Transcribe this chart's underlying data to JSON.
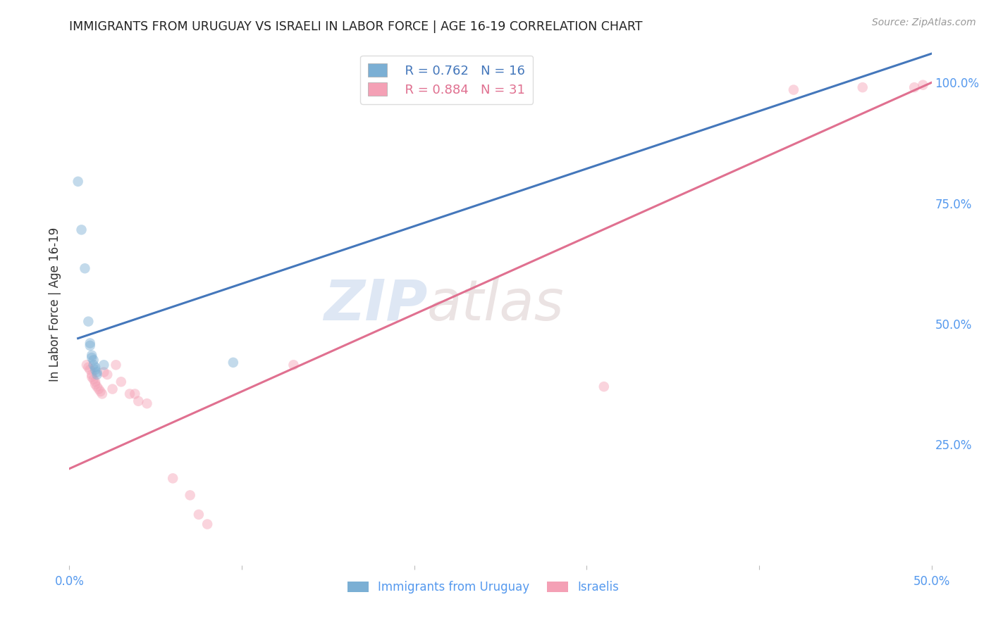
{
  "title": "IMMIGRANTS FROM URUGUAY VS ISRAELI IN LABOR FORCE | AGE 16-19 CORRELATION CHART",
  "source": "Source: ZipAtlas.com",
  "ylabel": "In Labor Force | Age 16-19",
  "xlim": [
    0.0,
    0.5
  ],
  "ylim": [
    0.0,
    1.08
  ],
  "ytick_labels_right": [
    "25.0%",
    "50.0%",
    "75.0%",
    "100.0%"
  ],
  "ytick_positions_right": [
    0.25,
    0.5,
    0.75,
    1.0
  ],
  "watermark_zip": "ZIP",
  "watermark_atlas": "atlas",
  "blue_scatter": [
    [
      0.005,
      0.795
    ],
    [
      0.007,
      0.695
    ],
    [
      0.009,
      0.615
    ],
    [
      0.011,
      0.505
    ],
    [
      0.012,
      0.46
    ],
    [
      0.012,
      0.455
    ],
    [
      0.013,
      0.435
    ],
    [
      0.013,
      0.43
    ],
    [
      0.014,
      0.425
    ],
    [
      0.014,
      0.415
    ],
    [
      0.015,
      0.41
    ],
    [
      0.015,
      0.405
    ],
    [
      0.016,
      0.4
    ],
    [
      0.016,
      0.395
    ],
    [
      0.02,
      0.415
    ],
    [
      0.095,
      0.42
    ]
  ],
  "pink_scatter": [
    [
      0.01,
      0.415
    ],
    [
      0.011,
      0.41
    ],
    [
      0.012,
      0.405
    ],
    [
      0.013,
      0.395
    ],
    [
      0.013,
      0.39
    ],
    [
      0.014,
      0.385
    ],
    [
      0.015,
      0.38
    ],
    [
      0.015,
      0.375
    ],
    [
      0.016,
      0.37
    ],
    [
      0.017,
      0.365
    ],
    [
      0.018,
      0.36
    ],
    [
      0.019,
      0.355
    ],
    [
      0.02,
      0.4
    ],
    [
      0.022,
      0.395
    ],
    [
      0.025,
      0.365
    ],
    [
      0.027,
      0.415
    ],
    [
      0.03,
      0.38
    ],
    [
      0.035,
      0.355
    ],
    [
      0.038,
      0.355
    ],
    [
      0.04,
      0.34
    ],
    [
      0.045,
      0.335
    ],
    [
      0.06,
      0.18
    ],
    [
      0.07,
      0.145
    ],
    [
      0.075,
      0.105
    ],
    [
      0.08,
      0.085
    ],
    [
      0.13,
      0.415
    ],
    [
      0.31,
      0.37
    ],
    [
      0.42,
      0.985
    ],
    [
      0.46,
      0.99
    ],
    [
      0.49,
      0.99
    ],
    [
      0.495,
      0.995
    ]
  ],
  "blue_line_x": [
    0.005,
    0.5
  ],
  "blue_line_y": [
    0.47,
    1.06
  ],
  "pink_line_x": [
    0.0,
    0.5
  ],
  "pink_line_y": [
    0.2,
    1.0
  ],
  "blue_color": "#7BAFD4",
  "pink_color": "#F4A0B5",
  "blue_line_color": "#4477BB",
  "pink_line_color": "#E07090",
  "legend_blue_R": "R = 0.762",
  "legend_blue_N": "N = 16",
  "legend_pink_R": "R = 0.884",
  "legend_pink_N": "N = 31",
  "legend_blue_label": "Immigrants from Uruguay",
  "legend_pink_label": "Israelis",
  "grid_color": "#CCCCCC",
  "background_color": "#FFFFFF",
  "title_color": "#222222",
  "axis_label_color": "#333333",
  "right_axis_color": "#5599EE",
  "marker_size": 110,
  "marker_alpha": 0.45,
  "line_width": 2.2
}
